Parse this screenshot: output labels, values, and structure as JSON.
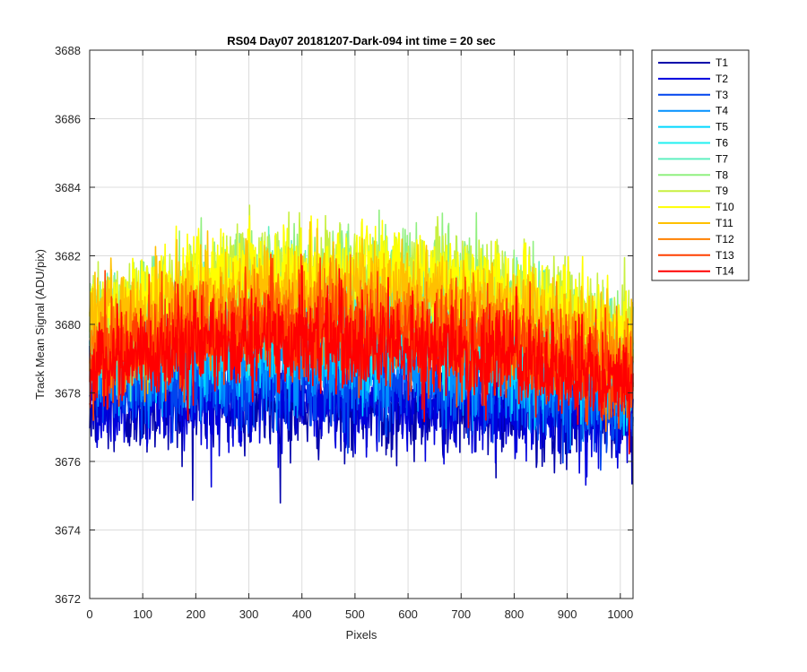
{
  "chart_data": {
    "type": "line",
    "title": "RS04 Day07 20181207-Dark-094 int time = 20 sec",
    "xlabel": "Pixels",
    "ylabel": "Track Mean Signal (ADU/pix)",
    "xlim": [
      0,
      1024
    ],
    "ylim": [
      3672,
      3688
    ],
    "xticks": [
      0,
      100,
      200,
      300,
      400,
      500,
      600,
      700,
      800,
      900,
      1000
    ],
    "yticks": [
      3672,
      3674,
      3676,
      3678,
      3680,
      3682,
      3684,
      3686,
      3688
    ],
    "grid": true,
    "legend_position": "outside-right",
    "n_points_per_series": 1024,
    "series": [
      {
        "name": "T1",
        "color": "#0000aa",
        "start": 3677.5,
        "center": 3677.6,
        "end": 3677.2,
        "noise": 0.9
      },
      {
        "name": "T2",
        "color": "#0000dd",
        "start": 3677.8,
        "center": 3677.8,
        "end": 3677.3,
        "noise": 0.9
      },
      {
        "name": "T3",
        "color": "#0044ee",
        "start": 3678.2,
        "center": 3678.4,
        "end": 3677.6,
        "noise": 0.9
      },
      {
        "name": "T4",
        "color": "#0090ff",
        "start": 3678.6,
        "center": 3678.9,
        "end": 3678.0,
        "noise": 0.9
      },
      {
        "name": "T5",
        "color": "#00d8ff",
        "start": 3679.0,
        "center": 3679.5,
        "end": 3678.4,
        "noise": 0.9
      },
      {
        "name": "T6",
        "color": "#20f0f0",
        "start": 3679.4,
        "center": 3680.3,
        "end": 3678.8,
        "noise": 0.9
      },
      {
        "name": "T7",
        "color": "#60f0c0",
        "start": 3679.7,
        "center": 3680.9,
        "end": 3679.1,
        "noise": 0.9
      },
      {
        "name": "T8",
        "color": "#90f080",
        "start": 3680.0,
        "center": 3681.5,
        "end": 3679.4,
        "noise": 0.9
      },
      {
        "name": "T9",
        "color": "#c8f040",
        "start": 3680.1,
        "center": 3681.6,
        "end": 3679.6,
        "noise": 0.9
      },
      {
        "name": "T10",
        "color": "#ffff00",
        "start": 3680.2,
        "center": 3681.6,
        "end": 3679.7,
        "noise": 0.9
      },
      {
        "name": "T11",
        "color": "#ffc000",
        "start": 3679.9,
        "center": 3681.0,
        "end": 3679.3,
        "noise": 0.9
      },
      {
        "name": "T12",
        "color": "#ff8000",
        "start": 3679.3,
        "center": 3680.3,
        "end": 3678.6,
        "noise": 0.9
      },
      {
        "name": "T13",
        "color": "#ff4000",
        "start": 3678.9,
        "center": 3679.8,
        "end": 3678.2,
        "noise": 0.9
      },
      {
        "name": "T14",
        "color": "#ff0000",
        "start": 3678.8,
        "center": 3679.5,
        "end": 3678.1,
        "noise": 0.9
      }
    ]
  }
}
